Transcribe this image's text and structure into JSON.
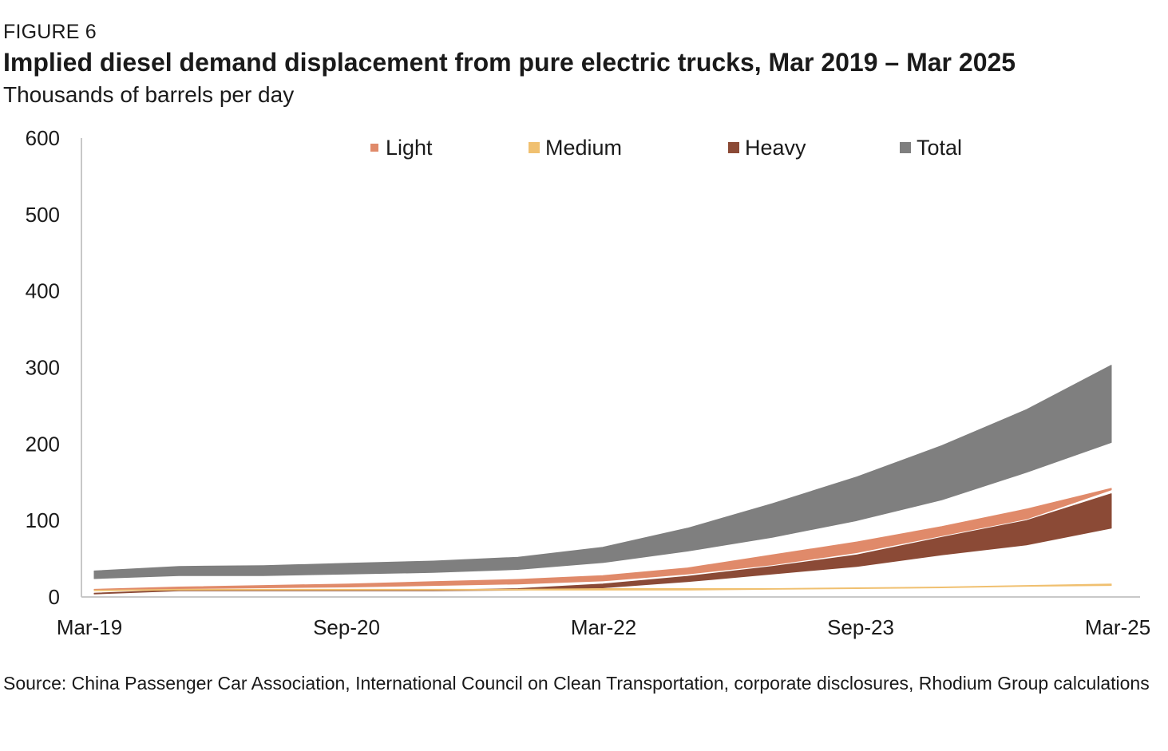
{
  "figure_label": "FIGURE 6",
  "source": "Source: China Passenger Car Association, International Council on Clean Transportation, corporate disclosures, Rhodium Group calculations",
  "chart_data": {
    "type": "area",
    "title": "Implied diesel demand displacement from pure electric trucks, Mar 2019 – Mar 2025",
    "subtitle": "Thousands of barrels per day",
    "xlabel": "",
    "ylabel": "",
    "ylim": [
      0,
      600
    ],
    "y_ticks": [
      "0",
      "100",
      "200",
      "300",
      "400",
      "500",
      "600"
    ],
    "x_ticks": [
      "Mar-19",
      "Sep-20",
      "Mar-22",
      "Sep-23",
      "Mar-25"
    ],
    "grid": false,
    "legend_position": "top",
    "x": [
      "Mar-19",
      "Sep-19",
      "Mar-20",
      "Sep-20",
      "Mar-21",
      "Sep-21",
      "Mar-22",
      "Sep-22",
      "Mar-23",
      "Sep-23",
      "Mar-24",
      "Sep-24",
      "Mar-25"
    ],
    "series": [
      {
        "name": "Light",
        "color": "#e08a6a",
        "low": [
          9,
          11,
          12,
          13,
          15,
          17,
          21,
          30,
          42,
          58,
          80,
          102,
          140
        ],
        "high": [
          10,
          13,
          15,
          17,
          20,
          23,
          28,
          38,
          55,
          72,
          92,
          115,
          142
        ]
      },
      {
        "name": "Medium",
        "color": "#f0c070",
        "low": [
          8,
          9,
          9,
          9,
          9,
          9,
          9,
          9,
          10,
          11,
          12,
          14,
          15
        ],
        "high": [
          9,
          10,
          10,
          10,
          10,
          10,
          11,
          11,
          11,
          12,
          13,
          15,
          17
        ]
      },
      {
        "name": "Heavy",
        "color": "#8b4a36",
        "low": [
          4,
          8,
          8,
          8,
          8,
          9,
          12,
          20,
          30,
          40,
          55,
          68,
          90
        ],
        "high": [
          5,
          9,
          9,
          9,
          9,
          11,
          17,
          27,
          40,
          55,
          78,
          100,
          135
        ]
      },
      {
        "name": "Total",
        "color": "#7f7f7f",
        "low": [
          24,
          28,
          28,
          30,
          32,
          36,
          45,
          60,
          78,
          100,
          127,
          163,
          202
        ],
        "high": [
          34,
          40,
          41,
          44,
          47,
          52,
          65,
          90,
          122,
          157,
          198,
          245,
          303
        ]
      }
    ]
  }
}
